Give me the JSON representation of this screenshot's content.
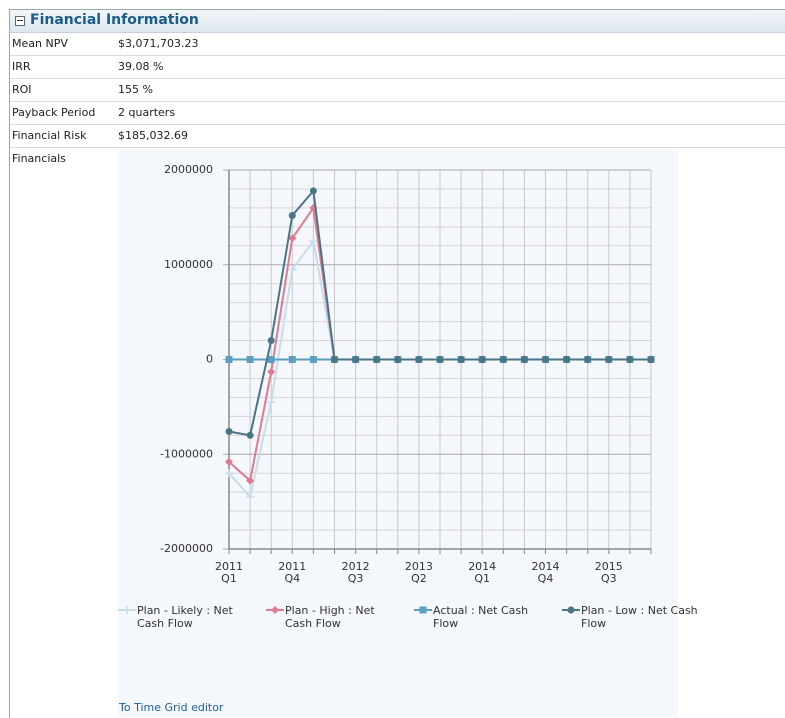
{
  "panel": {
    "title": "Financial Information",
    "rows": [
      {
        "label": "Mean NPV",
        "value": "$3,071,703.23"
      },
      {
        "label": "IRR",
        "value": "39.08 %"
      },
      {
        "label": "ROI",
        "value": "155 %"
      },
      {
        "label": "Payback Period",
        "value": "2 quarters"
      },
      {
        "label": "Financial Risk",
        "value": "$185,032.69"
      }
    ],
    "chart_label": "Financials",
    "link": "To Time Grid editor"
  },
  "chart_data": {
    "type": "line",
    "categories": [
      [
        "2011",
        "Q1"
      ],
      null,
      null,
      [
        "2011",
        "Q4"
      ],
      null,
      null,
      [
        "2012",
        "Q3"
      ],
      null,
      null,
      [
        "2013",
        "Q2"
      ],
      null,
      null,
      [
        "2014",
        "Q1"
      ],
      null,
      null,
      [
        "2014",
        "Q4"
      ],
      null,
      null,
      [
        "2015",
        "Q3"
      ],
      null,
      null
    ],
    "series": [
      {
        "name": "Plan - Likely : Net Cash Flow",
        "color": "#c9dce8",
        "marker": "plus",
        "values": [
          -1200000,
          -1450000,
          -450000,
          950000,
          1250000,
          0,
          0,
          0,
          0,
          0,
          0,
          0,
          0,
          0,
          0,
          0,
          0,
          0,
          0,
          0,
          0
        ]
      },
      {
        "name": "Plan - High : Net Cash Flow",
        "color": "#e07a92",
        "marker": "diamond",
        "values": [
          -1080000,
          -1280000,
          -130000,
          1280000,
          1600000,
          0,
          0,
          0,
          0,
          0,
          0,
          0,
          0,
          0,
          0,
          0,
          0,
          0,
          0,
          0,
          0
        ]
      },
      {
        "name": "Actual : Net Cash Flow",
        "color": "#5b9ebf",
        "marker": "square",
        "values": [
          0,
          0,
          0,
          0,
          0,
          0,
          0,
          0,
          0,
          0,
          0,
          0,
          0,
          0,
          0,
          0,
          0,
          0,
          0,
          0,
          0
        ]
      },
      {
        "name": "Plan - Low : Net Cash Flow",
        "color": "#4a7586",
        "marker": "circle",
        "values": [
          -760000,
          -800000,
          200000,
          1520000,
          1780000,
          0,
          0,
          0,
          0,
          0,
          0,
          0,
          0,
          0,
          0,
          0,
          0,
          0,
          0,
          0,
          0
        ]
      }
    ],
    "ylim": [
      -2000000,
      2000000
    ],
    "yticks": [
      -2000000,
      -1000000,
      0,
      1000000,
      2000000
    ],
    "grid": true,
    "minor_grid_divisions": 5,
    "legend": "bottom"
  }
}
